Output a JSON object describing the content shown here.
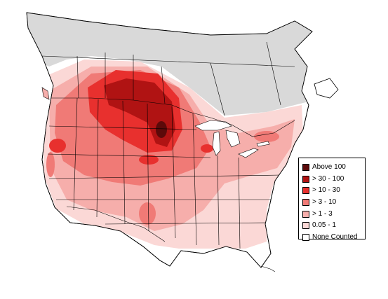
{
  "map": {
    "title": "",
    "region": "North America",
    "no_data_color": "#d9d9d9",
    "border_color": "#000000",
    "legend_position": "bottom-right"
  },
  "legend": {
    "items": [
      {
        "label": "Above 100",
        "color": "#5c0a0a"
      },
      {
        "label": "> 30 - 100",
        "color": "#b01313"
      },
      {
        "label": "> 10 - 30",
        "color": "#e8302e"
      },
      {
        "label": "> 3 - 10",
        "color": "#f07a76"
      },
      {
        "label": "> 1 - 3",
        "color": "#f6aeab"
      },
      {
        "label": "0.05 - 1",
        "color": "#fbd8d6"
      },
      {
        "label": "None Counted",
        "color": "#ffffff"
      }
    ]
  }
}
